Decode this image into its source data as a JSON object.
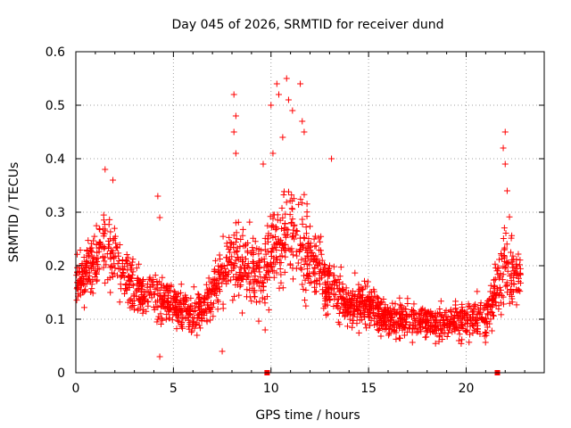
{
  "chart_data": {
    "type": "scatter",
    "title": "Day 045 of 2026, SRMTID for receiver dund",
    "xlabel": "GPS time / hours",
    "ylabel": "SRMTID / TECUs",
    "xlim": [
      0,
      24
    ],
    "ylim": [
      0,
      0.6
    ],
    "xticks": [
      0,
      5,
      10,
      15,
      20
    ],
    "xtick_labels": [
      "0",
      "5",
      "10",
      "15",
      "20"
    ],
    "yticks": [
      0,
      0.1,
      0.2,
      0.3,
      0.4,
      0.5,
      0.6
    ],
    "ytick_labels": [
      "0",
      "0.1",
      "0.2",
      "0.3",
      "0.4",
      "0.5",
      "0.6"
    ],
    "grid": true,
    "marker": "+",
    "color": "#ff0000",
    "series": [
      {
        "name": "SRMTID",
        "profile": {
          "x": [
            0.0,
            0.5,
            1.0,
            1.5,
            2.0,
            2.5,
            3.0,
            3.5,
            4.0,
            4.5,
            5.0,
            5.5,
            6.0,
            6.5,
            7.0,
            7.5,
            8.0,
            8.5,
            9.0,
            9.5,
            10.0,
            10.5,
            11.0,
            11.5,
            12.0,
            12.5,
            13.0,
            13.5,
            14.0,
            14.5,
            15.0,
            15.5,
            16.0,
            16.5,
            17.0,
            17.5,
            18.0,
            18.5,
            19.0,
            19.5,
            20.0,
            20.5,
            21.0,
            21.5,
            22.0,
            22.5,
            22.8
          ],
          "y_center": [
            0.17,
            0.19,
            0.21,
            0.23,
            0.22,
            0.19,
            0.16,
            0.15,
            0.14,
            0.14,
            0.13,
            0.12,
            0.11,
            0.12,
            0.15,
            0.18,
            0.2,
            0.2,
            0.19,
            0.18,
            0.22,
            0.25,
            0.26,
            0.24,
            0.21,
            0.19,
            0.16,
            0.14,
            0.13,
            0.13,
            0.13,
            0.11,
            0.1,
            0.1,
            0.1,
            0.1,
            0.1,
            0.09,
            0.09,
            0.1,
            0.1,
            0.1,
            0.1,
            0.15,
            0.2,
            0.19,
            0.17
          ],
          "y_spread": [
            0.04,
            0.06,
            0.07,
            0.08,
            0.07,
            0.06,
            0.05,
            0.05,
            0.05,
            0.05,
            0.04,
            0.04,
            0.04,
            0.04,
            0.05,
            0.06,
            0.08,
            0.08,
            0.07,
            0.06,
            0.09,
            0.1,
            0.1,
            0.1,
            0.08,
            0.07,
            0.06,
            0.05,
            0.05,
            0.05,
            0.05,
            0.04,
            0.04,
            0.04,
            0.04,
            0.04,
            0.04,
            0.04,
            0.04,
            0.04,
            0.04,
            0.04,
            0.04,
            0.06,
            0.08,
            0.07,
            0.06
          ]
        },
        "peaks": [
          {
            "x": 1.5,
            "y": 0.38
          },
          {
            "x": 1.9,
            "y": 0.36
          },
          {
            "x": 4.2,
            "y": 0.33
          },
          {
            "x": 4.3,
            "y": 0.29
          },
          {
            "x": 8.1,
            "y": 0.52
          },
          {
            "x": 8.2,
            "y": 0.48
          },
          {
            "x": 8.1,
            "y": 0.45
          },
          {
            "x": 8.2,
            "y": 0.41
          },
          {
            "x": 9.6,
            "y": 0.39
          },
          {
            "x": 10.0,
            "y": 0.5
          },
          {
            "x": 10.3,
            "y": 0.54
          },
          {
            "x": 10.4,
            "y": 0.52
          },
          {
            "x": 10.8,
            "y": 0.55
          },
          {
            "x": 10.9,
            "y": 0.51
          },
          {
            "x": 11.1,
            "y": 0.49
          },
          {
            "x": 11.5,
            "y": 0.54
          },
          {
            "x": 11.6,
            "y": 0.47
          },
          {
            "x": 11.7,
            "y": 0.45
          },
          {
            "x": 10.1,
            "y": 0.41
          },
          {
            "x": 10.6,
            "y": 0.44
          },
          {
            "x": 13.1,
            "y": 0.4
          },
          {
            "x": 22.0,
            "y": 0.45
          },
          {
            "x": 21.9,
            "y": 0.42
          },
          {
            "x": 22.0,
            "y": 0.39
          },
          {
            "x": 22.1,
            "y": 0.34
          },
          {
            "x": 4.3,
            "y": 0.03
          },
          {
            "x": 9.7,
            "y": 0.08
          },
          {
            "x": 7.5,
            "y": 0.04
          }
        ],
        "point_count": 2000
      }
    ],
    "bottom_markers": [
      {
        "x": 9.8,
        "y": 0
      },
      {
        "x": 21.6,
        "y": 0
      }
    ]
  }
}
